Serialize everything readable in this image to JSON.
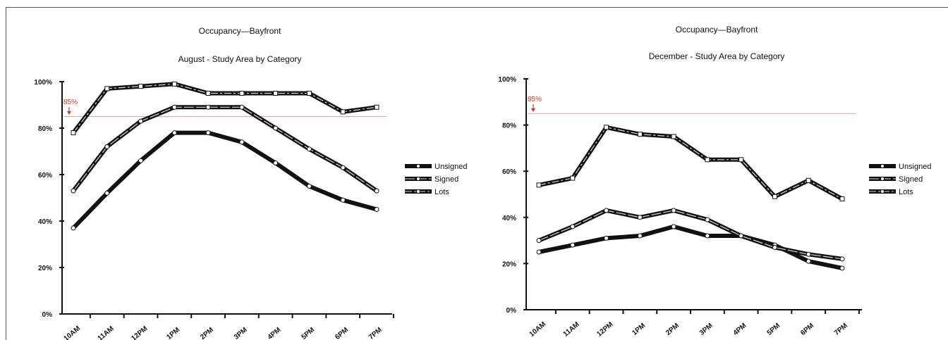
{
  "chart_data": [
    {
      "type": "line",
      "title": "Occupancy—Bayfront",
      "subtitle": "August - Study Area by Category",
      "categories": [
        "10AM",
        "11AM",
        "12PM",
        "1PM",
        "2PM",
        "3PM",
        "4PM",
        "5PM",
        "6PM",
        "7PM"
      ],
      "y_ticks": [
        "0%",
        "20%",
        "40%",
        "60%",
        "80%",
        "100%"
      ],
      "ylim": [
        0,
        100
      ],
      "reference_line": {
        "value": 85,
        "label": "85%",
        "color": "#e6a3a8"
      },
      "legend_position": "right",
      "series": [
        {
          "name": "Unsigned",
          "values": [
            37,
            52,
            66,
            78,
            78,
            74,
            65,
            55,
            49,
            45
          ]
        },
        {
          "name": "Signed",
          "values": [
            53,
            72,
            83,
            89,
            89,
            89,
            80,
            71,
            63,
            53
          ]
        },
        {
          "name": "Lots",
          "values": [
            78,
            97,
            98,
            99,
            95,
            95,
            95,
            95,
            87,
            89
          ]
        }
      ]
    },
    {
      "type": "line",
      "title": "Occupancy—Bayfront",
      "subtitle": "December - Study Area by Category",
      "categories": [
        "10AM",
        "11AM",
        "12PM",
        "1PM",
        "2PM",
        "3PM",
        "4PM",
        "5PM",
        "6PM",
        "7PM"
      ],
      "y_ticks": [
        "0%",
        "20%",
        "40%",
        "60%",
        "80%",
        "100%"
      ],
      "ylim": [
        0,
        100
      ],
      "reference_line": {
        "value": 85,
        "label": "85%",
        "color": "#e6a3a8"
      },
      "legend_position": "right",
      "series": [
        {
          "name": "Unsigned",
          "values": [
            25,
            28,
            31,
            32,
            36,
            32,
            32,
            28,
            21,
            18
          ]
        },
        {
          "name": "Signed",
          "values": [
            30,
            36,
            43,
            40,
            43,
            39,
            32,
            27,
            24,
            22
          ]
        },
        {
          "name": "Lots",
          "values": [
            54,
            57,
            79,
            76,
            75,
            65,
            65,
            49,
            56,
            48
          ]
        }
      ]
    }
  ]
}
